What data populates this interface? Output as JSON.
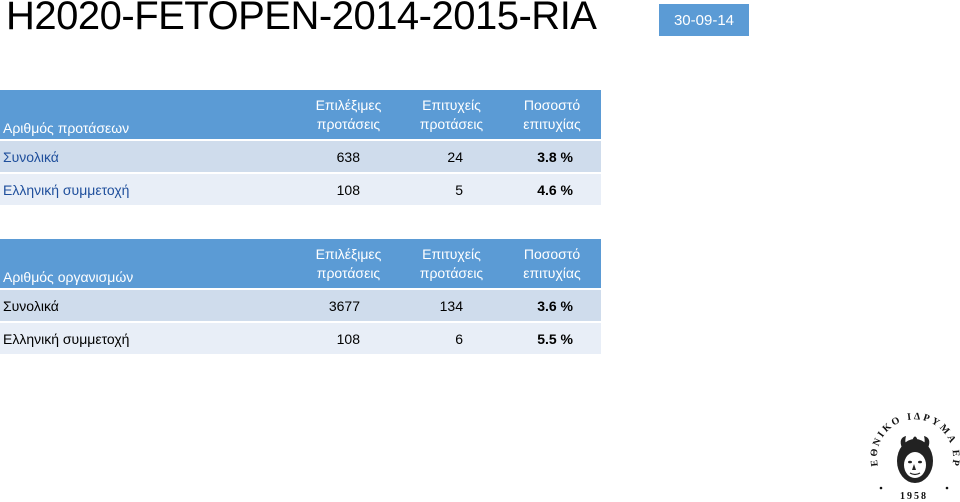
{
  "title": "H2020-FETOPEN-2014-2015-RIA",
  "date": "30-09-14",
  "table1": {
    "header": [
      "Αριθμός προτάσεων",
      "Επιλέξιμες προτάσεις",
      "Επιτυχείς προτάσεις",
      "Ποσοστό επιτυχίας"
    ],
    "rows": [
      {
        "label": "Συνολικά",
        "eligible": "638",
        "successful": "24",
        "rate": "3.8 %"
      },
      {
        "label": "Ελληνική συμμετοχή",
        "eligible": "108",
        "successful": "5",
        "rate": "4.6 %"
      }
    ]
  },
  "table2": {
    "header": [
      "Αριθμός οργανισμών",
      "Επιλέξιμες προτάσεις",
      "Επιτυχείς προτάσεις",
      "Ποσοστό επιτυχίας"
    ],
    "rows": [
      {
        "label": "Συνολικά",
        "eligible": "3677",
        "successful": "134",
        "rate": "3.6 %"
      },
      {
        "label": "Ελληνική συμμετοχή",
        "eligible": "108",
        "successful": "6",
        "rate": "5.5 %"
      }
    ]
  },
  "logo": {
    "text": "ΕΘΝΙΚΟ ΙΔΡΥΜΑ ΕΡΕΥΝΩΝ",
    "year": "1958"
  }
}
